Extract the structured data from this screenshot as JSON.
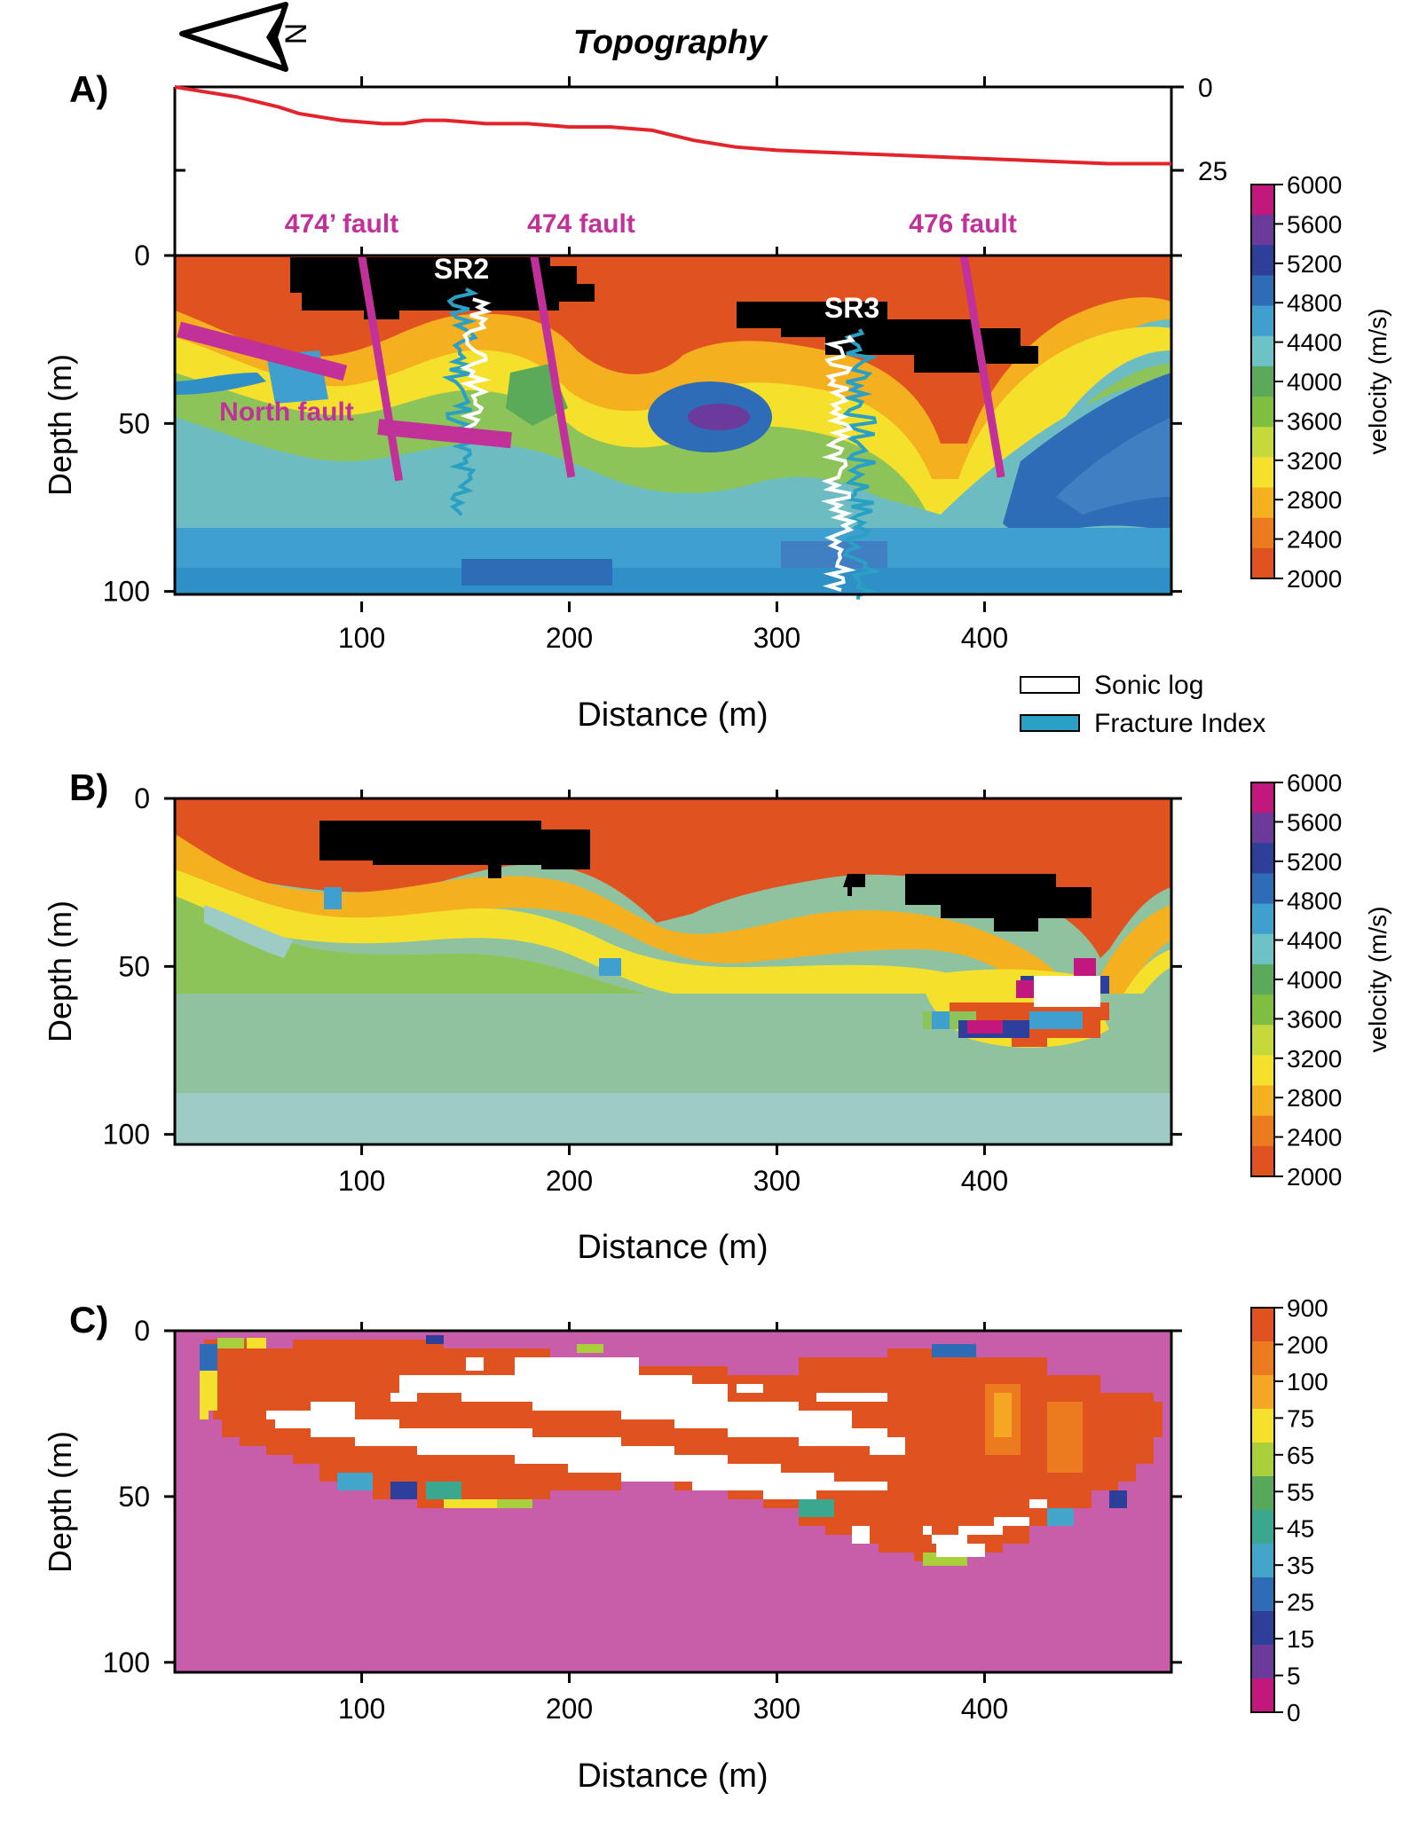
{
  "topography": {
    "title": "Topography",
    "panel_label": "A)",
    "north_label": "N",
    "right_ticks": [
      0,
      25
    ],
    "line_color": "#e3242b",
    "x": [
      10,
      20,
      40,
      60,
      70,
      90,
      110,
      120,
      130,
      140,
      160,
      180,
      200,
      220,
      240,
      260,
      280,
      300,
      340,
      380,
      420,
      460,
      490
    ],
    "elevation_depth": [
      0,
      1,
      3,
      6,
      8,
      10,
      11,
      11,
      10,
      10,
      11,
      11,
      12,
      12,
      13,
      16,
      18,
      19,
      20,
      21,
      22,
      23,
      23
    ]
  },
  "panel_a": {
    "label": "A)",
    "xlabel": "Distance (m)",
    "ylabel": "Depth (m)",
    "x_ticks": [
      100,
      200,
      300,
      400
    ],
    "y_ticks": [
      0,
      50,
      100
    ],
    "faults": [
      {
        "label": "474’ fault",
        "x1": 100,
        "z1": 0,
        "x2": 118,
        "z2": 67
      },
      {
        "label": "474 fault",
        "x1": 183,
        "z1": 0,
        "x2": 201,
        "z2": 66
      },
      {
        "label": "476 fault",
        "x1": 390,
        "z1": 0,
        "x2": 408,
        "z2": 66
      },
      {
        "label": "North fault",
        "x1": 12,
        "z1": 22,
        "x2": 92,
        "z2": 35
      },
      {
        "label": "",
        "x1": 108,
        "z1": 51,
        "x2": 172,
        "z2": 55
      }
    ],
    "boreholes": [
      "SR2",
      "SR3"
    ],
    "legend": [
      {
        "label": "Sonic log",
        "color": "#ffffff"
      },
      {
        "label": "Fracture Index",
        "color": "#2aa1c4"
      }
    ]
  },
  "panel_b": {
    "label": "B)",
    "xlabel": "Distance (m)",
    "ylabel": "Depth (m)",
    "x_ticks": [
      100,
      200,
      300,
      400
    ],
    "y_ticks": [
      0,
      50,
      100
    ]
  },
  "panel_c": {
    "label": "C)",
    "xlabel": "Distance (m)",
    "ylabel": "Depth (m)",
    "x_ticks": [
      100,
      200,
      300,
      400
    ],
    "y_ticks": [
      0,
      50,
      100
    ]
  },
  "velocity_scale": {
    "label": "velocity (m/s)",
    "ticks": [
      6000,
      5600,
      5200,
      4800,
      4400,
      4000,
      3600,
      3200,
      2800,
      2400,
      2000
    ],
    "colors": [
      "#c2187e",
      "#6b3a9b",
      "#2d3f9a",
      "#2f6cb7",
      "#3f9fcf",
      "#6cc2c4",
      "#5aaa5a",
      "#7fbf3f",
      "#c6d93a",
      "#f5e12b",
      "#f5b020",
      "#ec7b1f",
      "#e0521f"
    ]
  },
  "density_scale": {
    "ticks": [
      900,
      200,
      100,
      75,
      65,
      55,
      45,
      35,
      25,
      15,
      5,
      0
    ],
    "colors": [
      "#e0521f",
      "#ec7b1f",
      "#f5a623",
      "#f5e12b",
      "#a9cf3b",
      "#57a85a",
      "#3aa88f",
      "#42a5c9",
      "#2f6cb7",
      "#2d3f9a",
      "#6b3a9b",
      "#c2187e"
    ]
  },
  "chart_data": [
    {
      "type": "line",
      "title": "Topography",
      "x": [
        10,
        20,
        40,
        60,
        70,
        90,
        110,
        120,
        130,
        140,
        160,
        180,
        200,
        220,
        240,
        260,
        280,
        300,
        340,
        380,
        420,
        460,
        490
      ],
      "y": [
        0,
        1,
        3,
        6,
        8,
        10,
        11,
        11,
        10,
        10,
        11,
        11,
        12,
        12,
        13,
        16,
        18,
        19,
        20,
        21,
        22,
        23,
        23
      ],
      "ylim": [
        0,
        25
      ]
    },
    {
      "type": "heatmap",
      "title": "A)",
      "xlabel": "Distance (m)",
      "ylabel": "Depth (m)",
      "xlim": [
        10,
        490
      ],
      "ylim": [
        0,
        103
      ],
      "colorbar": {
        "label": "velocity (m/s)",
        "range": [
          2000,
          6000
        ]
      }
    },
    {
      "type": "heatmap",
      "title": "B)",
      "xlabel": "Distance (m)",
      "ylabel": "Depth (m)",
      "xlim": [
        10,
        490
      ],
      "ylim": [
        0,
        103
      ],
      "colorbar": {
        "label": "velocity (m/s)",
        "range": [
          2000,
          6000
        ]
      }
    },
    {
      "type": "heatmap",
      "title": "C)",
      "xlabel": "Distance (m)",
      "ylabel": "Depth (m)",
      "xlim": [
        10,
        490
      ],
      "ylim": [
        0,
        103
      ],
      "colorbar": {
        "range": [
          0,
          900
        ]
      }
    }
  ]
}
